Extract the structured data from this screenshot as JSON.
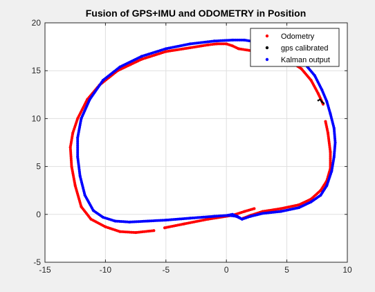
{
  "chart_data": {
    "type": "scatter",
    "title": "Fusion of GPS+IMU and ODOMETRY in Position",
    "xlabel": "",
    "ylabel": "",
    "xlim": [
      -15,
      10
    ],
    "ylim": [
      -5,
      20
    ],
    "xticks": [
      -15,
      -10,
      -5,
      0,
      5,
      10
    ],
    "yticks": [
      -5,
      0,
      5,
      10,
      15,
      20
    ],
    "grid": true,
    "legend_position": "top-right",
    "series": [
      {
        "name": "Odometry",
        "color": "#ff0000",
        "marker": "dot",
        "segments": [
          [
            [
              2.3,
              0.6
            ],
            [
              1.5,
              0.3
            ],
            [
              0.5,
              -0.1
            ],
            [
              -1.5,
              -0.5
            ],
            [
              -3.5,
              -1.0
            ],
            [
              -5.1,
              -1.4
            ]
          ],
          [
            [
              -6.0,
              -1.7
            ],
            [
              -7.5,
              -1.9
            ],
            [
              -8.8,
              -1.8
            ],
            [
              -10.0,
              -1.3
            ],
            [
              -11.2,
              -0.5
            ],
            [
              -12.0,
              0.8
            ],
            [
              -12.5,
              3.0
            ],
            [
              -12.8,
              5.0
            ],
            [
              -12.9,
              7.0
            ],
            [
              -12.7,
              8.5
            ],
            [
              -12.3,
              10.0
            ],
            [
              -11.5,
              12.0
            ],
            [
              -10.5,
              13.5
            ],
            [
              -9.0,
              15.0
            ],
            [
              -7.0,
              16.2
            ],
            [
              -5.0,
              17.0
            ],
            [
              -3.0,
              17.4
            ],
            [
              -1.5,
              17.7
            ],
            [
              -0.8,
              17.8
            ],
            [
              0.0,
              17.8
            ],
            [
              0.5,
              17.6
            ],
            [
              1.0,
              17.3
            ],
            [
              2.0,
              17.1
            ],
            [
              3.5,
              16.8
            ],
            [
              5.0,
              16.2
            ],
            [
              6.2,
              15.2
            ],
            [
              7.0,
              14.0
            ],
            [
              7.6,
              12.6
            ],
            [
              8.0,
              11.5
            ]
          ],
          [
            [
              8.2,
              9.7
            ],
            [
              8.4,
              8.5
            ],
            [
              8.6,
              6.5
            ],
            [
              8.6,
              4.8
            ],
            [
              8.3,
              3.5
            ],
            [
              7.8,
              2.5
            ],
            [
              7.0,
              1.6
            ],
            [
              6.0,
              1.0
            ],
            [
              4.5,
              0.6
            ],
            [
              3.0,
              0.3
            ],
            [
              2.0,
              -0.1
            ],
            [
              1.4,
              -0.4
            ]
          ]
        ]
      },
      {
        "name": "gps calibrated",
        "color": "#000000",
        "marker": "dot",
        "segments": [
          [
            [
              7.6,
              11.9
            ],
            [
              7.75,
              12.0
            ],
            [
              7.9,
              11.75
            ],
            [
              8.05,
              11.6
            ]
          ]
        ]
      },
      {
        "name": "Kalman output",
        "color": "#0000ff",
        "marker": "dot",
        "segments": [
          [
            [
              1.3,
              -0.5
            ],
            [
              0.8,
              -0.2
            ],
            [
              0.2,
              -0.1
            ],
            [
              -1.0,
              -0.2
            ],
            [
              -3.0,
              -0.4
            ],
            [
              -5.0,
              -0.6
            ],
            [
              -6.5,
              -0.7
            ],
            [
              -8.0,
              -0.8
            ],
            [
              -9.2,
              -0.7
            ],
            [
              -10.2,
              -0.3
            ],
            [
              -11.0,
              0.4
            ],
            [
              -11.7,
              2.0
            ],
            [
              -12.1,
              4.0
            ],
            [
              -12.3,
              6.0
            ],
            [
              -12.3,
              8.0
            ],
            [
              -12.0,
              10.0
            ],
            [
              -11.3,
              12.0
            ],
            [
              -10.2,
              14.0
            ],
            [
              -8.8,
              15.4
            ],
            [
              -7.0,
              16.5
            ],
            [
              -5.0,
              17.3
            ],
            [
              -3.0,
              17.8
            ],
            [
              -1.0,
              18.1
            ],
            [
              0.5,
              18.2
            ],
            [
              1.5,
              18.2
            ],
            [
              2.5,
              18.0
            ],
            [
              4.0,
              17.5
            ],
            [
              5.5,
              16.7
            ],
            [
              6.5,
              15.7
            ],
            [
              7.3,
              14.5
            ],
            [
              7.9,
              13.0
            ],
            [
              8.3,
              11.8
            ],
            [
              8.6,
              10.5
            ],
            [
              8.9,
              9.0
            ],
            [
              9.0,
              7.5
            ],
            [
              8.9,
              6.0
            ],
            [
              8.7,
              4.5
            ],
            [
              8.3,
              3.0
            ],
            [
              7.8,
              2.0
            ],
            [
              7.0,
              1.3
            ],
            [
              6.0,
              0.7
            ],
            [
              4.5,
              0.3
            ],
            [
              3.0,
              0.1
            ],
            [
              2.0,
              -0.2
            ],
            [
              1.3,
              -0.5
            ],
            [
              0.9,
              -0.2
            ],
            [
              0.5,
              0.0
            ],
            [
              0.1,
              -0.1
            ]
          ]
        ]
      }
    ]
  }
}
